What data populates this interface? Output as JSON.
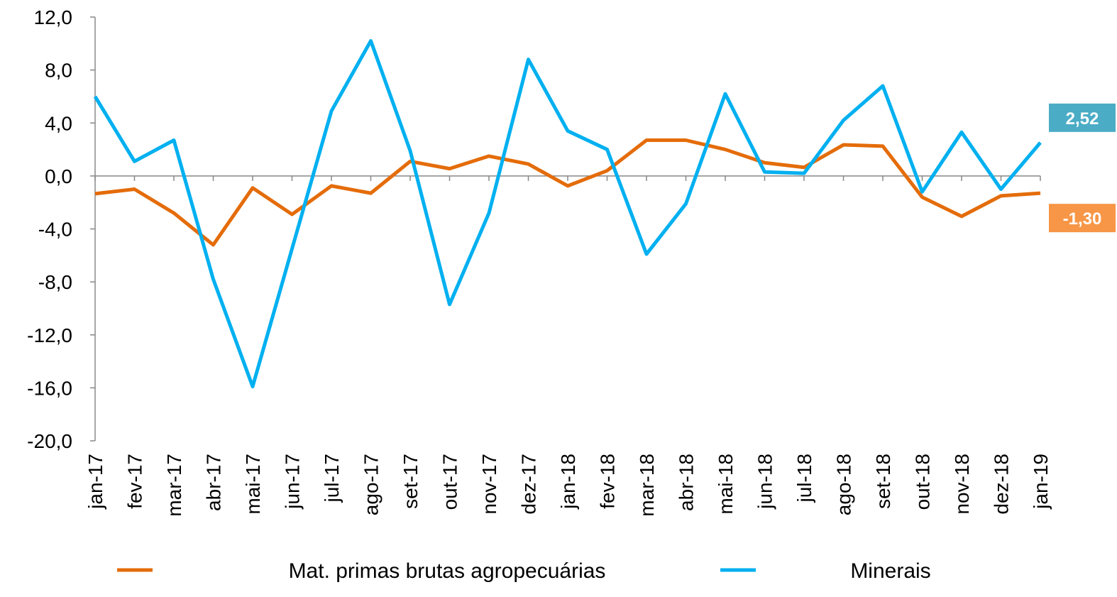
{
  "chart_data": {
    "type": "line",
    "categories": [
      "jan-17",
      "fev-17",
      "mar-17",
      "abr-17",
      "mai-17",
      "jun-17",
      "jul-17",
      "ago-17",
      "set-17",
      "out-17",
      "nov-17",
      "dez-17",
      "jan-18",
      "fev-18",
      "mar-18",
      "abr-18",
      "mai-18",
      "jun-18",
      "jul-18",
      "ago-18",
      "set-18",
      "out-18",
      "nov-18",
      "dez-18",
      "jan-19"
    ],
    "series": [
      {
        "name": "Mat. primas brutas agropecuárias",
        "color": "#e46c0a",
        "values": [
          -1.34,
          -1.0,
          -2.8,
          -5.2,
          -0.9,
          -2.9,
          -0.75,
          -1.3,
          1.1,
          0.55,
          1.5,
          0.9,
          -0.75,
          0.4,
          2.7,
          2.7,
          2.0,
          1.0,
          0.65,
          2.35,
          2.25,
          -1.6,
          -3.05,
          -1.5,
          -1.3
        ],
        "value_labels": [
          null,
          null,
          null,
          null,
          null,
          null,
          null,
          null,
          null,
          null,
          null,
          null,
          null,
          null,
          null,
          null,
          null,
          null,
          null,
          null,
          null,
          null,
          null,
          null,
          "-1,30"
        ],
        "label_color": "#f79646"
      },
      {
        "name": "Minerais",
        "color": "#00b0f0",
        "values": [
          6.0,
          1.1,
          2.7,
          -7.8,
          -15.9,
          -5.5,
          4.9,
          10.2,
          1.9,
          -9.7,
          -2.8,
          8.8,
          3.4,
          2.0,
          -5.9,
          -2.1,
          6.2,
          0.3,
          0.2,
          4.2,
          6.8,
          -1.2,
          3.3,
          -1.0,
          2.52
        ],
        "value_labels": [
          null,
          null,
          null,
          null,
          null,
          null,
          null,
          null,
          null,
          null,
          null,
          null,
          null,
          null,
          null,
          null,
          null,
          null,
          null,
          null,
          null,
          null,
          null,
          null,
          "2,52"
        ],
        "label_color": "#4bacc6"
      }
    ],
    "ylim": [
      -20,
      12
    ],
    "yticks": [
      {
        "value": -20,
        "label": "-20,0"
      },
      {
        "value": -16,
        "label": "-16,0"
      },
      {
        "value": -12,
        "label": "-12,0"
      },
      {
        "value": -8,
        "label": "-8,0"
      },
      {
        "value": -4,
        "label": "-4,0"
      },
      {
        "value": 0,
        "label": "0,0"
      },
      {
        "value": 4,
        "label": "4,0"
      },
      {
        "value": 8,
        "label": "8,0"
      },
      {
        "value": 12,
        "label": "12,0"
      }
    ],
    "grid": false,
    "legend": "bottom"
  }
}
